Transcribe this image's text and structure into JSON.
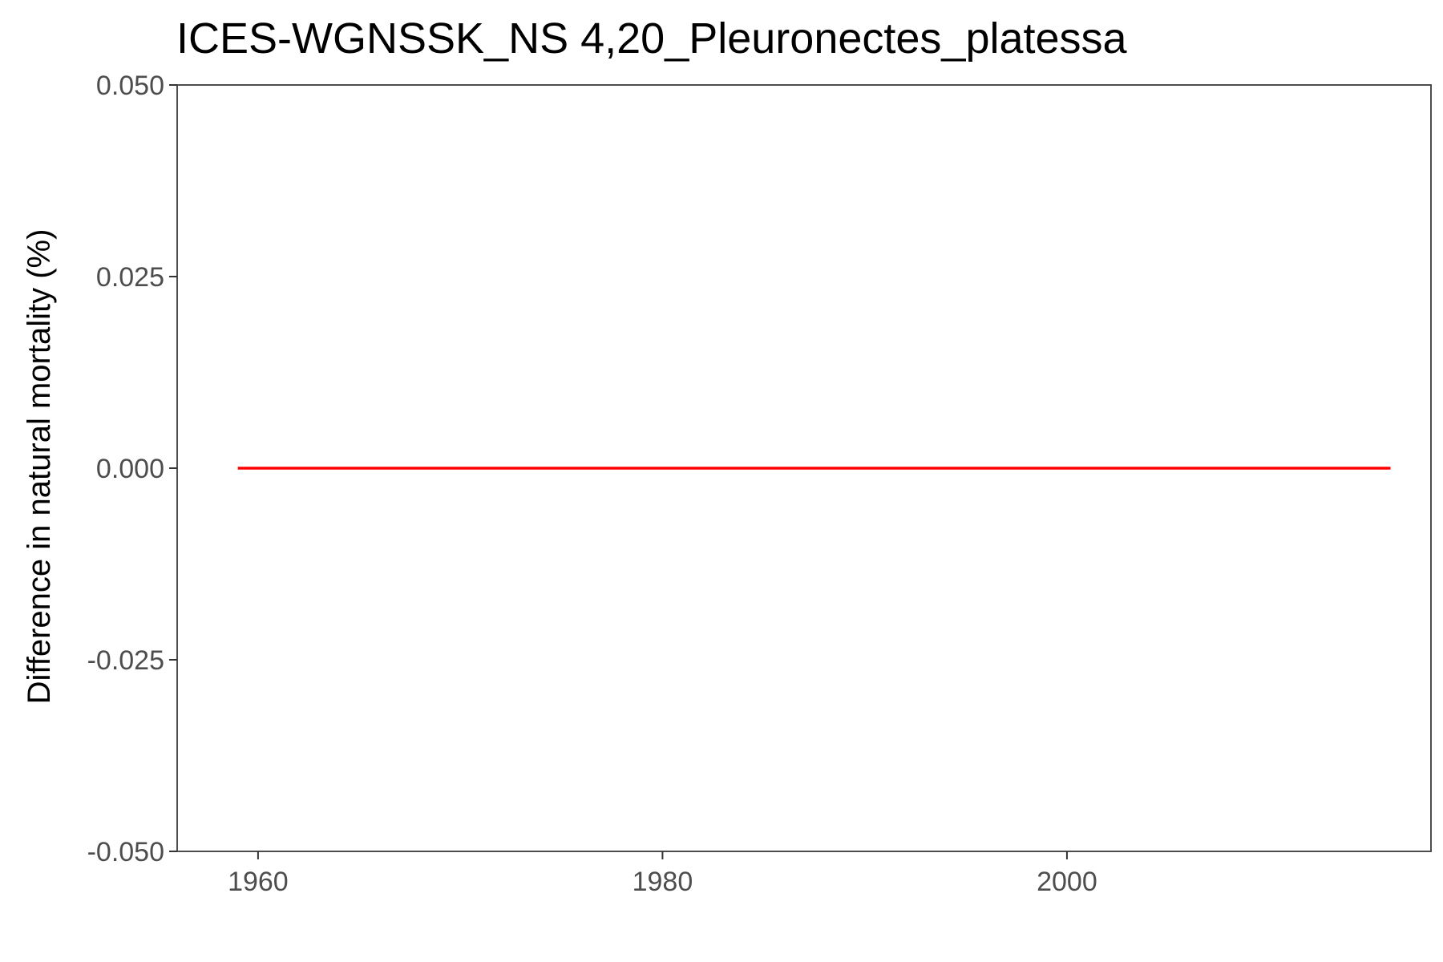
{
  "chart_data": {
    "type": "line",
    "title": "ICES-WGNSSK_NS 4,20_Pleuronectes_platessa",
    "xlabel": "",
    "ylabel": "Difference in natural mortality (%)",
    "xlim": [
      1956,
      2018
    ],
    "ylim": [
      -0.05,
      0.05
    ],
    "x_ticks": [
      1960,
      1980,
      2000
    ],
    "x_tick_labels": [
      "1960",
      "1980",
      "2000"
    ],
    "y_ticks": [
      -0.05,
      -0.025,
      0,
      0.025,
      0.05
    ],
    "y_tick_labels": [
      "-0.050",
      "-0.025",
      "0.000",
      "0.025",
      "0.050"
    ],
    "grid": false,
    "series": [
      {
        "color": "#ff0000",
        "x": [
          1959,
          2016
        ],
        "y": [
          0,
          0
        ]
      }
    ]
  }
}
